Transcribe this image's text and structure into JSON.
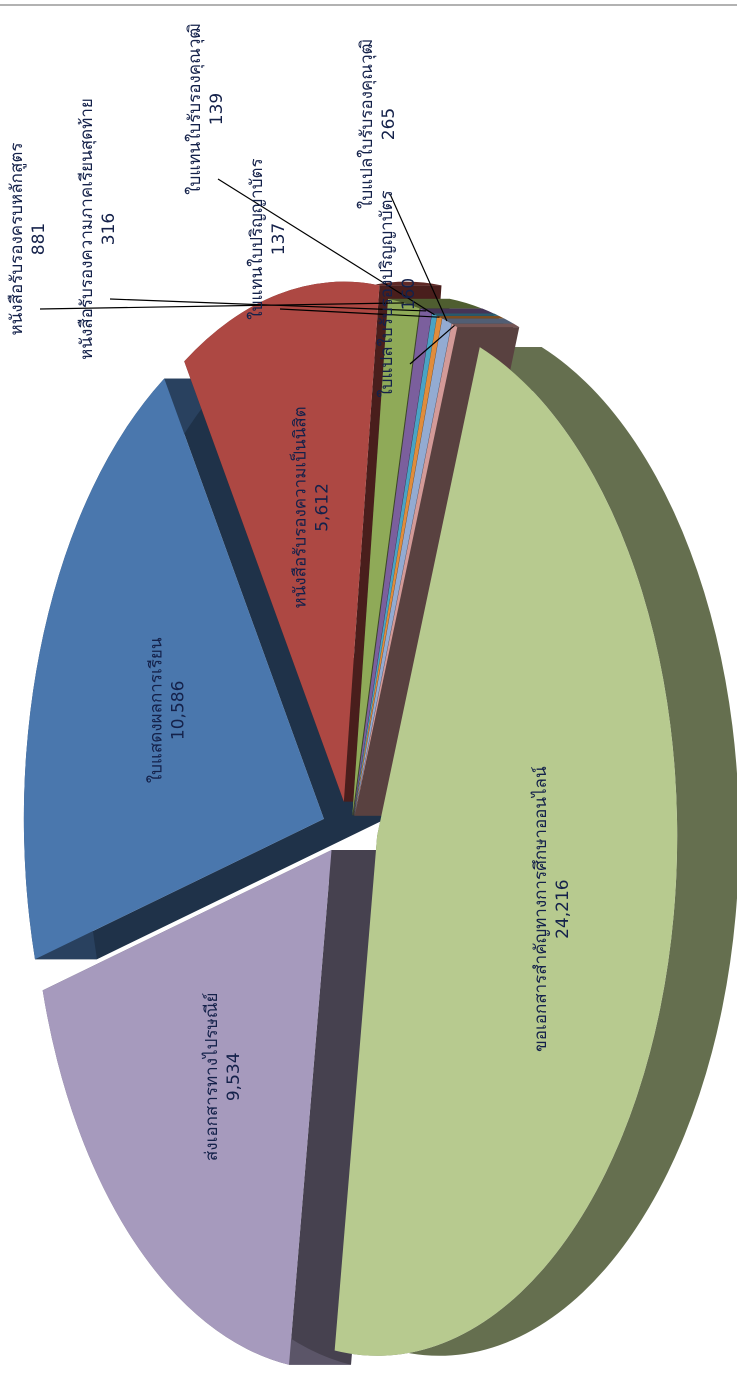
{
  "chart_data": {
    "type": "pie",
    "categories": [
      "ขอเอกสารสำคัญทางการศึกษาออนไลน์",
      "ส่งเอกสารทางไปรษณีย์",
      "ใบแสดงผลการเรียน",
      "หนังสือรับรองความเป็นนิสิต",
      "หนังสือรับรองครบหลักสูตร",
      "หนังสือรับรองความภาคเรียนสุดท้าย",
      "ใบแทนใบรับรองคุณวุฒิ",
      "ใบแทนใบปริญญาบัตร",
      "ใบแปลใบรับรองคุณวุฒิ",
      "ใบแปลใบรับรองปริญญาบัตร"
    ],
    "values": [
      24216,
      9534,
      10586,
      5612,
      881,
      316,
      139,
      137,
      265,
      160
    ],
    "value_labels": [
      "24,216",
      "9,534",
      "10,586",
      "5,612",
      "881",
      "316",
      "139",
      "137",
      "265",
      "160"
    ],
    "colors": [
      "#b7ca8f",
      "#a69abd",
      "#4a77ad",
      "#ad4843",
      "#8faa58",
      "#7b5f9d",
      "#4aa3c4",
      "#e08c3c",
      "#93abd2",
      "#d39a98"
    ]
  }
}
